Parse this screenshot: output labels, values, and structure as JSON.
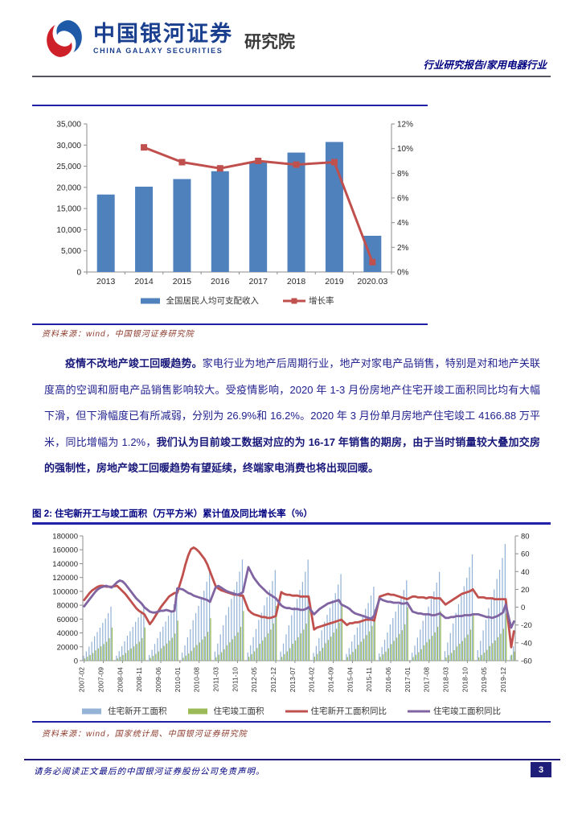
{
  "header": {
    "logo": {
      "cn": "中国银河证券",
      "en": "CHINA GALAXY SECURITIES",
      "suffix": "研究院"
    },
    "report_type": "行业研究报告/家用电器行业"
  },
  "figure1": {
    "source": "资料来源：wind，中国银河证券研究院"
  },
  "paragraph": {
    "lead_bold": "疫情不改地产竣工回暖趋势。",
    "body1": "家电行业为地产后周期行业，地产对家电产品销售，特别是对和地产关联度高的空调和厨电产品销售影响较大。受疫情影响，2020 年 1-3 月份房地产住宅开竣工面积同比均有大幅下滑，但下滑幅度已有所减弱，分别为 26.9%和 16.2%。2020 年 3 月份单月房地产住宅竣工 4166.88 万平米，同比增幅为 1.2%，",
    "body2_bold": "我们认为目前竣工数据对应的为 16-17 年销售的期房，由于当时销量较大叠加交房的强制性，房地产竣工回暖趋势有望延续，终端家电消费也将出现回暖。"
  },
  "figure2": {
    "title": "图 2:  住宅新开工与竣工面积（万平方米）累计值及同比增长率（%）",
    "source": "资料来源：wind，国家统计局、中国银河证券研究院"
  },
  "footer": {
    "disclaimer": "请务必阅读正文最后的中国银河证券股份公司免责声明。",
    "page": "3"
  },
  "colors": {
    "bar_blue": "#4F81BD",
    "line_red": "#C0504D",
    "bar_light_blue": "#95B3D7",
    "bar_green": "#9BBB59",
    "line_purple": "#8064A2",
    "navy": "#000080",
    "axis_gray": "#8C8C8C"
  },
  "chart_data": [
    {
      "type": "bar",
      "categories": [
        "2013",
        "2014",
        "2015",
        "2016",
        "2017",
        "2018",
        "2019",
        "2020.03"
      ],
      "series": [
        {
          "name": "全国居民人均可支配收入",
          "type": "bar",
          "axis": "left",
          "color": "#4F81BD",
          "values": [
            18311,
            20167,
            21966,
            23821,
            25974,
            28228,
            30733,
            8561
          ]
        },
        {
          "name": "增长率",
          "type": "line",
          "axis": "right",
          "color": "#C0504D",
          "marker": "square",
          "values": [
            null,
            10.1,
            8.9,
            8.4,
            9.0,
            8.7,
            8.9,
            0.8
          ]
        }
      ],
      "left_axis": {
        "min": 0,
        "max": 35000,
        "step": 5000,
        "format": "comma"
      },
      "right_axis": {
        "min": 0,
        "max": 12,
        "step": 2,
        "suffix": "%"
      },
      "grid": false,
      "legend_position": "bottom"
    },
    {
      "type": "bar",
      "x_start": "2007-02",
      "n_points": 158,
      "tick_every": 7,
      "tick_labels": [
        "2007-02",
        "2007-09",
        "2008-04",
        "2008-11",
        "2009-06",
        "2010-01",
        "2010-08",
        "2011-03",
        "2011-10",
        "2012-05",
        "2012-12",
        "2013-07",
        "2014-02",
        "2014-09",
        "2015-04",
        "2015-11",
        "2016-06",
        "2017-01",
        "2017-08",
        "2018-03",
        "2018-10",
        "2019-05",
        "2019-12"
      ],
      "left_axis": {
        "min": 0,
        "max": 180000,
        "step": 20000
      },
      "right_axis": {
        "min": -60,
        "max": 80,
        "step": 20
      },
      "grid": false,
      "legend_position": "bottom",
      "series": [
        {
          "name": "住宅新开工面积",
          "type": "bar",
          "axis": "left",
          "color": "#95B3D7",
          "values": [
            7000,
            13300,
            20300,
            27300,
            35100,
            41300,
            47600,
            54600,
            60800,
            68600,
            78000,
            null,
            7200,
            13600,
            20800,
            28000,
            36000,
            42400,
            48800,
            56000,
            62400,
            70400,
            80000,
            null,
            8300,
            15700,
            24100,
            32400,
            41600,
            49000,
            56400,
            64800,
            72200,
            81400,
            92500,
            null,
            11700,
            22000,
            33700,
            45300,
            58300,
            68600,
            79000,
            90700,
            101000,
            114000,
            129500,
            null,
            13100,
            24800,
            38000,
            51100,
            65700,
            77400,
            89100,
            102200,
            113900,
            128500,
            146000,
            null,
            11800,
            22200,
            34000,
            45700,
            58800,
            69300,
            79700,
            91500,
            102000,
            115000,
            130700,
            null,
            13100,
            24800,
            37900,
            51000,
            65600,
            77300,
            88900,
            102100,
            113700,
            128300,
            145800,
            null,
            11200,
            21200,
            32500,
            43700,
            56200,
            66200,
            76200,
            87400,
            97400,
            109900,
            124900,
            null,
            9600,
            18100,
            27700,
            37300,
            48000,
            56600,
            65100,
            74700,
            83200,
            93900,
            106700,
            null,
            10400,
            19700,
            30100,
            40600,
            52200,
            61400,
            70700,
            81100,
            90400,
            102000,
            115900,
            null,
            11500,
            21800,
            33300,
            44800,
            57600,
            67900,
            78100,
            89700,
            99900,
            112700,
            128100,
            null,
            13800,
            26100,
            39900,
            53700,
            69000,
            81300,
            93600,
            107400,
            119700,
            135000,
            153400,
            null,
            15200,
            28600,
            43800,
            59000,
            75800,
            89300,
            102800,
            118000,
            131400,
            148300,
            168500,
            null,
            7600,
            20800
          ]
        },
        {
          "name": "住宅竣工面积",
          "type": "bar",
          "axis": "left",
          "color": "#9BBB59",
          "values": [
            3300,
            5700,
            8100,
            11000,
            14800,
            17700,
            20600,
            23900,
            27200,
            32500,
            47800,
            null,
            3400,
            5700,
            8100,
            11000,
            14800,
            17700,
            20600,
            24000,
            27300,
            32600,
            47900,
            null,
            4000,
            6900,
            9800,
            13300,
            17900,
            21300,
            24800,
            28900,
            32900,
            39200,
            57700,
            null,
            4300,
            7300,
            10400,
            14100,
            19000,
            22600,
            26300,
            30600,
            34900,
            41600,
            61200,
            null,
            5000,
            8600,
            12200,
            16500,
            22200,
            26500,
            30800,
            35900,
            40900,
            48800,
            71700,
            null,
            5500,
            9500,
            13400,
            18200,
            24500,
            29200,
            34000,
            39500,
            45000,
            53700,
            79000,
            null,
            5500,
            9400,
            13400,
            18100,
            24400,
            29100,
            33800,
            39400,
            44900,
            53500,
            78700,
            null,
            5700,
            9700,
            13800,
            18600,
            25100,
            29900,
            34800,
            40500,
            46100,
            55000,
            80900,
            null,
            5200,
            8900,
            12500,
            17000,
            22900,
            27300,
            31700,
            36900,
            42100,
            50200,
            73800,
            null,
            5400,
            9300,
            13100,
            17800,
            23900,
            28600,
            33200,
            38600,
            44000,
            52500,
            77200,
            null,
            5000,
            8600,
            12200,
            16500,
            22300,
            26600,
            30900,
            35900,
            40900,
            48800,
            71800,
            null,
            4600,
            7900,
            11200,
            15200,
            20500,
            24400,
            28400,
            33000,
            37600,
            44900,
            66000,
            null,
            4800,
            8200,
            11600,
            15600,
            21100,
            25200,
            29200,
            34000,
            38800,
            46200,
            68000,
            null,
            8500,
            13200
          ]
        },
        {
          "name": "住宅新开工面积同比",
          "type": "line",
          "axis": "right",
          "color": "#C0504D",
          "values": [
            8,
            12,
            16,
            19,
            21,
            23,
            24,
            24,
            23,
            23,
            23,
            null,
            24,
            21,
            18,
            15,
            11,
            7,
            3,
            -1,
            -4,
            -6,
            -8,
            null,
            -19,
            -15,
            -10,
            -5,
            0,
            4,
            8,
            12,
            14,
            16,
            16,
            null,
            36,
            48,
            58,
            65,
            67,
            65,
            62,
            58,
            54,
            48,
            40,
            null,
            24,
            21,
            19,
            18,
            17,
            16,
            15,
            14,
            14,
            13,
            13,
            null,
            -3,
            -6,
            -8,
            -9,
            -10,
            -11,
            -11,
            -12,
            -12,
            -11,
            -10,
            null,
            17,
            15,
            14,
            14,
            13,
            13,
            13,
            12,
            12,
            12,
            12,
            null,
            -25,
            -23,
            -22,
            -21,
            -20,
            -19,
            -18,
            -17,
            -16,
            -15,
            -14,
            null,
            -20,
            -18,
            -18,
            -17,
            -17,
            -16,
            -15,
            -14,
            -14,
            -14,
            -15,
            null,
            12,
            13,
            14,
            15,
            14,
            14,
            13,
            12,
            11,
            10,
            9,
            null,
            12,
            12,
            11,
            11,
            11,
            10,
            11,
            11,
            10,
            10,
            10,
            null,
            3,
            5,
            7,
            9,
            11,
            13,
            15,
            16,
            17,
            18,
            20,
            null,
            11,
            11,
            11,
            10,
            10,
            10,
            9,
            9,
            9,
            9,
            9,
            null,
            -45,
            -27
          ]
        },
        {
          "name": "住宅竣工面积同比",
          "type": "line",
          "axis": "right",
          "color": "#8064A2",
          "values": [
            1,
            5,
            9,
            13,
            17,
            20,
            22,
            23,
            24,
            23,
            22,
            null,
            28,
            30,
            29,
            26,
            22,
            18,
            14,
            10,
            7,
            4,
            0,
            null,
            -5,
            -6,
            -6,
            -5,
            -4,
            -4,
            -3,
            -4,
            -5,
            -4,
            21,
            null,
            20,
            18,
            16,
            15,
            13,
            12,
            11,
            10,
            9,
            8,
            6,
            null,
            22,
            24,
            22,
            20,
            18,
            17,
            16,
            15,
            14,
            15,
            17,
            null,
            45,
            39,
            33,
            29,
            25,
            22,
            19,
            16,
            14,
            12,
            10,
            null,
            2,
            0,
            -1,
            -1,
            -2,
            -2,
            -2,
            -3,
            -3,
            -2,
            0,
            null,
            -8,
            -5,
            -2,
            0,
            2,
            4,
            5,
            6,
            7,
            8,
            3,
            null,
            0,
            -2,
            -5,
            -7,
            -8,
            -9,
            -10,
            -11,
            -12,
            -13,
            -9,
            null,
            10,
            8,
            7,
            6,
            6,
            5,
            5,
            5,
            4,
            4,
            5,
            null,
            -5,
            -6,
            -7,
            -7,
            -8,
            -8,
            -8,
            -9,
            -9,
            -8,
            -7,
            null,
            -12,
            -12,
            -11,
            -11,
            -10,
            -10,
            -10,
            -9,
            -9,
            -9,
            -8,
            null,
            -8,
            -9,
            -10,
            -11,
            -11,
            -12,
            -11,
            -10,
            -8,
            -6,
            3,
            null,
            -23,
            -16
          ]
        }
      ]
    }
  ]
}
